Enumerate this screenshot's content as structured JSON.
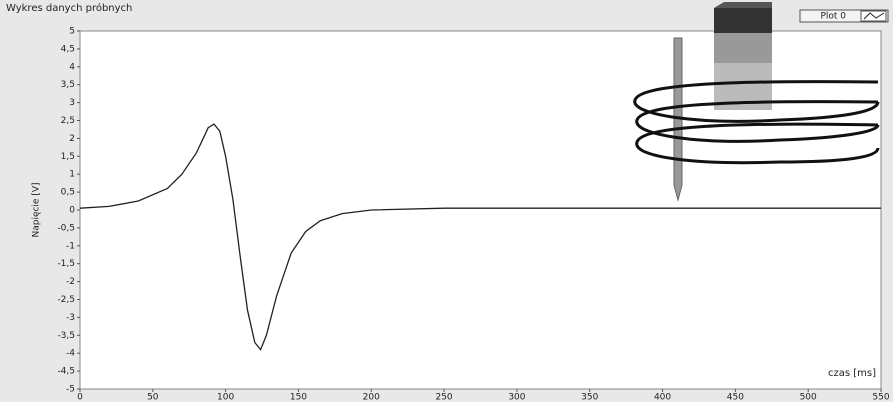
{
  "chart_data": {
    "type": "line",
    "title": "Wykres danych próbnych",
    "x_label": "czas [ms]",
    "y_label": "Napięcie [V]",
    "legend": "top-right",
    "x": [
      0,
      20,
      40,
      60,
      70,
      80,
      88,
      92,
      96,
      100,
      105,
      110,
      115,
      120,
      124,
      128,
      135,
      145,
      155,
      165,
      180,
      200,
      250,
      300,
      350,
      400,
      450,
      500,
      550
    ],
    "series": [
      {
        "name": "Plot 0",
        "color": "#222222",
        "values": [
          0.05,
          0.1,
          0.25,
          0.6,
          1.0,
          1.6,
          2.3,
          2.4,
          2.2,
          1.5,
          0.3,
          -1.3,
          -2.8,
          -3.7,
          -3.9,
          -3.5,
          -2.4,
          -1.2,
          -0.6,
          -0.3,
          -0.1,
          0,
          0.05,
          0.05,
          0.05,
          0.05,
          0.05,
          0.05,
          0.05
        ]
      }
    ],
    "xlim": [
      0,
      550
    ],
    "xticks": [
      0,
      50,
      100,
      150,
      200,
      250,
      300,
      350,
      400,
      450,
      500,
      550
    ],
    "ylim": [
      -5,
      5
    ],
    "yticks": [
      -5,
      {
        "value": -4.5,
        "label": "-4,5"
      },
      -4,
      {
        "value": -3.5,
        "label": "-3,5"
      },
      -3,
      {
        "value": -2.5,
        "label": "-2,5"
      },
      -2,
      {
        "value": -1.5,
        "label": "-1,5"
      },
      -1,
      {
        "value": -0.5,
        "label": "-0,5"
      },
      0,
      {
        "value": 0.5,
        "label": "0,5"
      },
      1,
      {
        "value": 1.5,
        "label": "1,5"
      },
      2,
      {
        "value": 2.5,
        "label": "2,5"
      },
      3,
      {
        "value": 3.5,
        "label": "3,5"
      },
      4,
      {
        "value": 4.5,
        "label": "4,5"
      },
      5
    ],
    "grid": false
  }
}
